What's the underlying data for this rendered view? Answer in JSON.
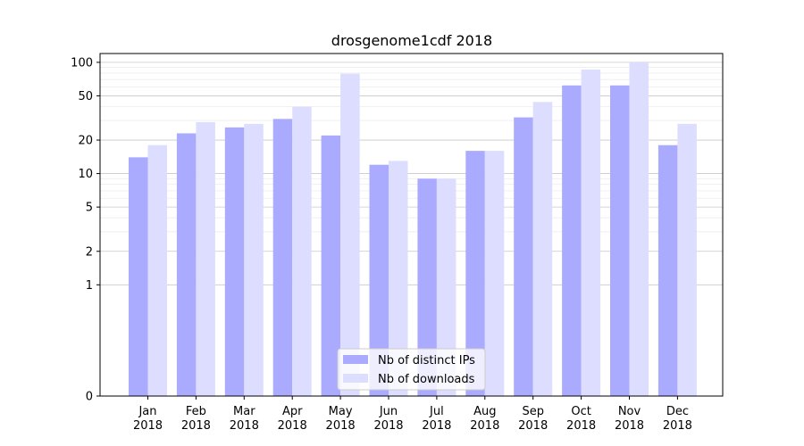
{
  "chart_data": {
    "type": "bar",
    "title": "drosgenome1cdf 2018",
    "xlabel": "",
    "ylabel": "",
    "yscale": "symlog",
    "ylim": [
      0,
      120
    ],
    "yticks": [
      0,
      1,
      2,
      5,
      10,
      20,
      50,
      100
    ],
    "ytick_labels": [
      "0",
      "1",
      "2",
      "5",
      "10",
      "20",
      "50",
      "100"
    ],
    "categories": [
      [
        "Jan",
        "2018"
      ],
      [
        "Feb",
        "2018"
      ],
      [
        "Mar",
        "2018"
      ],
      [
        "Apr",
        "2018"
      ],
      [
        "May",
        "2018"
      ],
      [
        "Jun",
        "2018"
      ],
      [
        "Jul",
        "2018"
      ],
      [
        "Aug",
        "2018"
      ],
      [
        "Sep",
        "2018"
      ],
      [
        "Oct",
        "2018"
      ],
      [
        "Nov",
        "2018"
      ],
      [
        "Dec",
        "2018"
      ]
    ],
    "series": [
      {
        "name": "Nb of distinct IPs",
        "color": "#aaaaff",
        "values": [
          14,
          23,
          26,
          31,
          22,
          12,
          9,
          16,
          32,
          62,
          62,
          18
        ]
      },
      {
        "name": "Nb of downloads",
        "color": "#ddddff",
        "values": [
          18,
          29,
          28,
          40,
          79,
          13,
          9,
          16,
          44,
          86,
          100,
          28
        ]
      }
    ],
    "legend_position": "lower center",
    "grid": true
  }
}
